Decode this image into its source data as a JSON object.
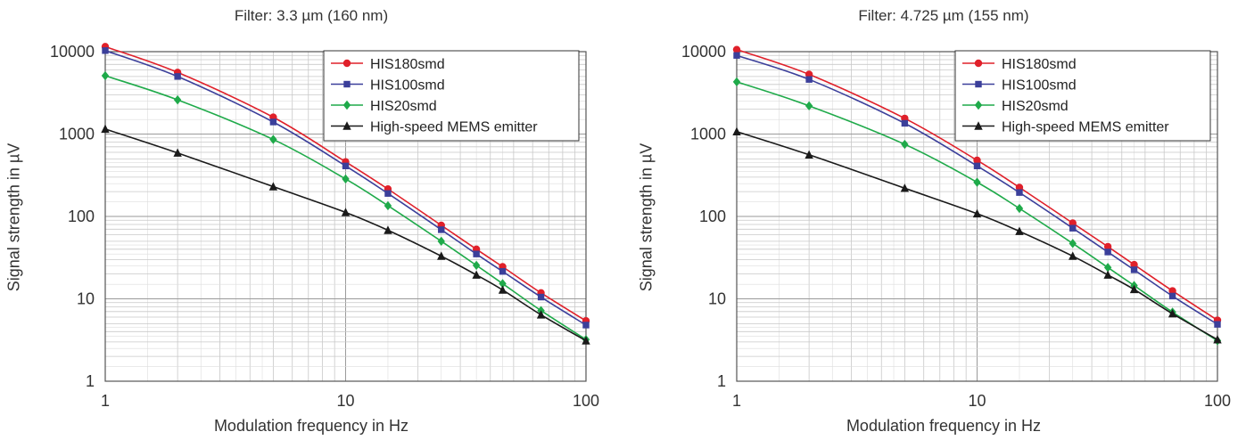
{
  "chart_data": [
    {
      "type": "line",
      "title": "Filter: 3.3 µm (160 nm)",
      "xlabel": "Modulation frequency in Hz",
      "ylabel": "Signal strength in µV",
      "xscale": "log",
      "yscale": "log",
      "xlim": [
        1,
        100
      ],
      "ylim": [
        1,
        10000
      ],
      "xticks": [
        "1",
        "10",
        "100"
      ],
      "yticks": [
        "1",
        "10",
        "100",
        "1000",
        "10000"
      ],
      "grid": true,
      "legend_position": "top-right",
      "x": [
        1,
        2,
        5,
        10,
        15,
        25,
        35,
        45,
        65,
        100
      ],
      "series": [
        {
          "name": "HIS180smd",
          "color": "#e0202a",
          "marker": "circle",
          "values": [
            11500,
            5600,
            1600,
            460,
            215,
            78,
            40,
            24.5,
            11.8,
            5.4
          ]
        },
        {
          "name": "HIS100smd",
          "color": "#3b3f9a",
          "marker": "square",
          "values": [
            10300,
            5000,
            1400,
            410,
            190,
            69,
            35,
            21.5,
            10.5,
            4.8
          ]
        },
        {
          "name": "HIS20smd",
          "color": "#1faa4a",
          "marker": "diamond",
          "values": [
            5100,
            2600,
            860,
            285,
            135,
            50,
            25.5,
            15.3,
            7.2,
            3.2
          ]
        },
        {
          "name": "High-speed MEMS emitter",
          "color": "#1a1a1a",
          "marker": "triangle",
          "values": [
            1150,
            590,
            230,
            112,
            68,
            33,
            19.5,
            12.8,
            6.4,
            3.1
          ]
        }
      ]
    },
    {
      "type": "line",
      "title": "Filter: 4.725 µm (155 nm)",
      "xlabel": "Modulation frequency in Hz",
      "ylabel": "Signal strength in µV",
      "xscale": "log",
      "yscale": "log",
      "xlim": [
        1,
        100
      ],
      "ylim": [
        1,
        10000
      ],
      "xticks": [
        "1",
        "10",
        "100"
      ],
      "yticks": [
        "1",
        "10",
        "100",
        "1000",
        "10000"
      ],
      "grid": true,
      "legend_position": "top-right",
      "x": [
        1,
        2,
        5,
        10,
        15,
        25,
        35,
        45,
        65,
        100
      ],
      "series": [
        {
          "name": "HIS180smd",
          "color": "#e0202a",
          "marker": "circle",
          "values": [
            10600,
            5300,
            1550,
            480,
            225,
            83,
            43,
            26,
            12.5,
            5.5
          ]
        },
        {
          "name": "HIS100smd",
          "color": "#3b3f9a",
          "marker": "square",
          "values": [
            9000,
            4600,
            1350,
            410,
            195,
            72,
            37,
            22.5,
            10.8,
            4.9
          ]
        },
        {
          "name": "HIS20smd",
          "color": "#1faa4a",
          "marker": "diamond",
          "values": [
            4300,
            2200,
            750,
            260,
            125,
            47,
            24,
            14.5,
            6.9,
            3.1
          ]
        },
        {
          "name": "High-speed MEMS emitter",
          "color": "#1a1a1a",
          "marker": "triangle",
          "values": [
            1070,
            560,
            220,
            108,
            66,
            33,
            19.5,
            13,
            6.6,
            3.2
          ]
        }
      ]
    }
  ]
}
